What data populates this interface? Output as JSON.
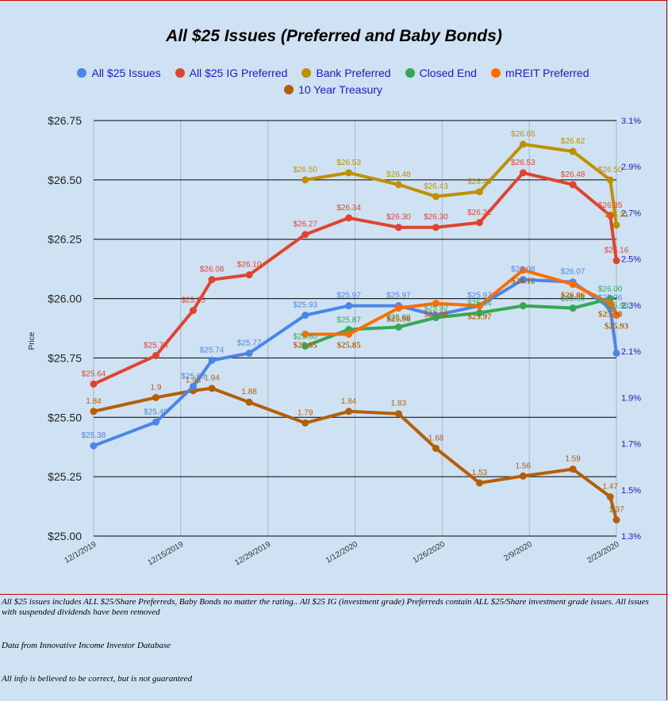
{
  "colors": {
    "background": "#cfe2f3",
    "all25": "#4a86e8",
    "ig": "#e0442f",
    "bank": "#bf9000",
    "cef": "#34a853",
    "mreit": "#ff6d00",
    "treasury": "#b45f06",
    "right_axis": "#1a1ad6",
    "frame": "#cc0000"
  },
  "chart_data": {
    "type": "line",
    "title": "All $25 Issues (Preferred and Baby Bonds)",
    "ylabel": "Price",
    "ylim": [
      25.0,
      26.75
    ],
    "y_ticks": [
      "$25.00",
      "$25.25",
      "$25.50",
      "$25.75",
      "$26.00",
      "$26.25",
      "$26.50",
      "$26.75"
    ],
    "y2lim": [
      1.3,
      3.1
    ],
    "y2_ticks": [
      "1.3%",
      "1.5%",
      "1.7%",
      "1.9%",
      "2.1%",
      "2.3%",
      "2.5%",
      "2.7%",
      "2.9%",
      "3.1%"
    ],
    "x_ticks": [
      "12/1/2019",
      "12/15/2019",
      "12/29/2019",
      "1/12/2020",
      "1/26/2020",
      "2/9/2020",
      "2/23/2020"
    ],
    "grid": true,
    "legend": "top",
    "series": [
      {
        "name": "All $25 Issues",
        "color_key": "all25",
        "axis": "left",
        "points": [
          [
            "12/1/2019",
            25.38
          ],
          [
            "12/11/2019",
            25.48
          ],
          [
            "12/17/2019",
            25.63
          ],
          [
            "12/20/2019",
            25.74
          ],
          [
            "12/26/2019",
            25.77
          ],
          [
            "1/4/2020",
            25.93
          ],
          [
            "1/11/2020",
            25.97
          ],
          [
            "1/19/2020",
            25.97
          ],
          [
            "1/25/2020",
            25.93
          ],
          [
            "2/1/2020",
            25.97
          ],
          [
            "2/8/2020",
            26.08
          ],
          [
            "2/16/2020",
            26.07
          ],
          [
            "2/22/2020",
            25.96
          ],
          [
            "2/23/2020",
            25.77
          ]
        ],
        "labels": [
          "$25.38",
          "$25.48",
          "$25.63",
          "$25.74",
          "$25.77",
          "$25.93",
          "$25.97",
          "$25.97",
          "",
          "$25.97",
          "$26.08",
          "$26.07",
          "$25.96",
          ""
        ]
      },
      {
        "name": "All $25 IG Preferred",
        "color_key": "ig",
        "axis": "left",
        "points": [
          [
            "12/1/2019",
            25.64
          ],
          [
            "12/11/2019",
            25.76
          ],
          [
            "12/17/2019",
            25.95
          ],
          [
            "12/20/2019",
            26.08
          ],
          [
            "12/26/2019",
            26.1
          ],
          [
            "1/4/2020",
            26.27
          ],
          [
            "1/11/2020",
            26.34
          ],
          [
            "1/19/2020",
            26.3
          ],
          [
            "1/25/2020",
            26.3
          ],
          [
            "2/1/2020",
            26.32
          ],
          [
            "2/8/2020",
            26.53
          ],
          [
            "2/16/2020",
            26.48
          ],
          [
            "2/22/2020",
            26.35
          ],
          [
            "2/23/2020",
            26.16
          ]
        ],
        "labels": [
          "$25.64",
          "$25.76",
          "$25.95",
          "$26.08",
          "$26.10",
          "$26.27",
          "$26.34",
          "$26.30",
          "$26.30",
          "$26.32",
          "$26.53",
          "$26.48",
          "$26.35",
          "$26.16"
        ]
      },
      {
        "name": "Bank Preferred",
        "color_key": "bank",
        "axis": "left",
        "points": [
          [
            "1/4/2020",
            26.5
          ],
          [
            "1/11/2020",
            26.53
          ],
          [
            "1/19/2020",
            26.48
          ],
          [
            "1/25/2020",
            26.43
          ],
          [
            "2/1/2020",
            26.45
          ],
          [
            "2/8/2020",
            26.65
          ],
          [
            "2/16/2020",
            26.62
          ],
          [
            "2/22/2020",
            26.5
          ],
          [
            "2/23/2020",
            26.31
          ]
        ],
        "labels": [
          "$26.50",
          "$26.53",
          "$26.48",
          "$26.43",
          "$26.45",
          "$26.65",
          "$26.62",
          "$26.50",
          "$26.31"
        ]
      },
      {
        "name": "Closed End",
        "color_key": "cef",
        "axis": "left",
        "points": [
          [
            "1/4/2020",
            25.8
          ],
          [
            "1/11/2020",
            25.87
          ],
          [
            "1/19/2020",
            25.88
          ],
          [
            "1/25/2020",
            25.92
          ],
          [
            "2/1/2020",
            25.94
          ],
          [
            "2/8/2020",
            25.97
          ],
          [
            "2/16/2020",
            25.96
          ],
          [
            "2/22/2020",
            26.0
          ],
          [
            "2/23/2020",
            25.93
          ]
        ],
        "labels": [
          "$25.80",
          "$25.87",
          "$25.88",
          "$25.92",
          "$25.94",
          "",
          "$25.96",
          "$26.00",
          "$25.93"
        ]
      },
      {
        "name": "mREIT Preferred",
        "color_key": "mreit",
        "axis": "left",
        "points": [
          [
            "1/4/2020",
            25.85
          ],
          [
            "1/11/2020",
            25.85
          ],
          [
            "1/19/2020",
            25.96
          ],
          [
            "1/25/2020",
            25.98
          ],
          [
            "2/1/2020",
            25.97
          ],
          [
            "2/8/2020",
            26.12
          ],
          [
            "2/16/2020",
            26.06
          ],
          [
            "2/22/2020",
            25.98
          ],
          [
            "2/23/2020",
            25.93
          ]
        ],
        "labels": [
          "$25.85",
          "$25.85",
          "$25.96",
          "$25.98",
          "$25.97",
          "$26.12",
          "$26.06",
          "$25.98",
          "$25.93"
        ]
      },
      {
        "name": "10 Year Treasury",
        "color_key": "treasury",
        "axis": "right",
        "points": [
          [
            "12/1/2019",
            1.84
          ],
          [
            "12/11/2019",
            1.9
          ],
          [
            "12/17/2019",
            1.93
          ],
          [
            "12/20/2019",
            1.94
          ],
          [
            "12/26/2019",
            1.88
          ],
          [
            "1/4/2020",
            1.79
          ],
          [
            "1/11/2020",
            1.84
          ],
          [
            "1/19/2020",
            1.83
          ],
          [
            "1/25/2020",
            1.68
          ],
          [
            "2/1/2020",
            1.53
          ],
          [
            "2/8/2020",
            1.56
          ],
          [
            "2/16/2020",
            1.59
          ],
          [
            "2/22/2020",
            1.47
          ],
          [
            "2/23/2020",
            1.37
          ]
        ],
        "labels": [
          "1.84",
          "1.9",
          "1.93",
          "1.94",
          "1.88",
          "1.79",
          "1.84",
          "1.83",
          "1.68",
          "1.53",
          "1.56",
          "1.59",
          "1.47",
          "1.37"
        ]
      }
    ]
  },
  "notes": [
    "All $25 issues includes ALL $25/Share Preferreds, Baby Bonds no matter the rating..  All $25 IG (investment grade) Preferreds contain ALL $25/Share investment grade issues.  All issues with suspended dividends have been removed",
    "Data from Innovative Income Investor Database",
    "All info is believed to be correct, but is not guaranteed"
  ]
}
